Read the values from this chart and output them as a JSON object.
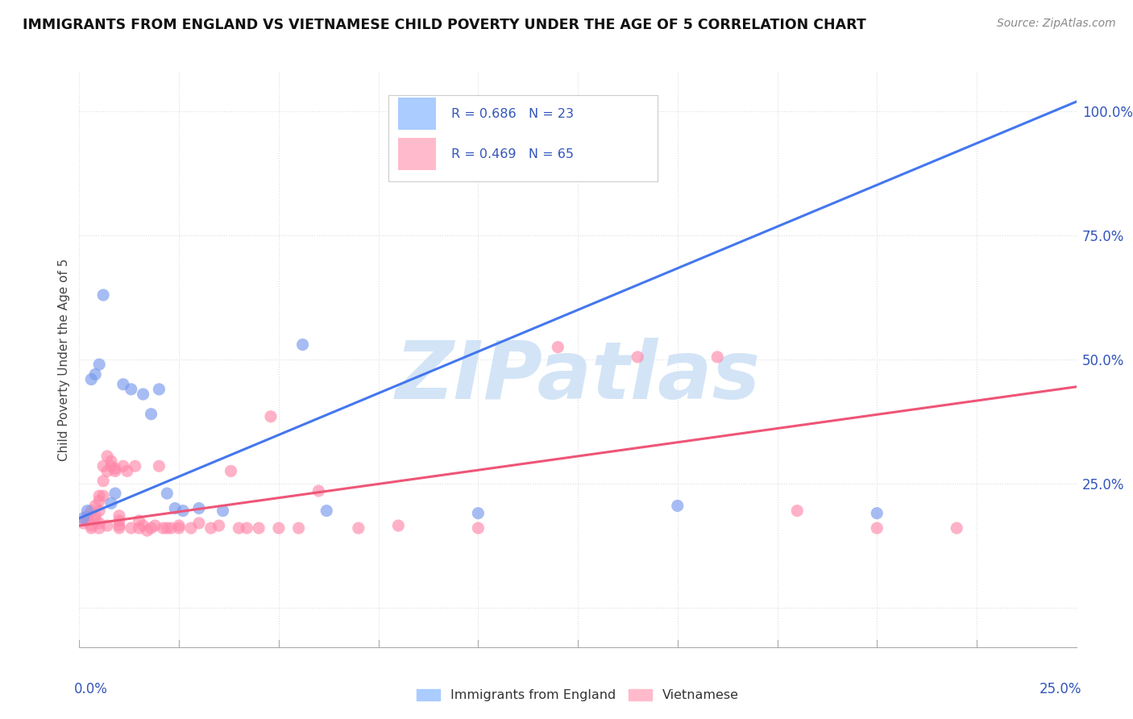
{
  "title": "IMMIGRANTS FROM ENGLAND VS VIETNAMESE CHILD POVERTY UNDER THE AGE OF 5 CORRELATION CHART",
  "source": "Source: ZipAtlas.com",
  "ylabel": "Child Poverty Under the Age of 5",
  "right_yticks": [
    0.0,
    0.25,
    0.5,
    0.75,
    1.0
  ],
  "right_yticklabels": [
    "",
    "25.0%",
    "50.0%",
    "75.0%",
    "100.0%"
  ],
  "xmin": 0.0,
  "xmax": 0.25,
  "ymin": -0.08,
  "ymax": 1.08,
  "blue_scatter": [
    [
      0.001,
      0.18
    ],
    [
      0.002,
      0.195
    ],
    [
      0.003,
      0.46
    ],
    [
      0.004,
      0.47
    ],
    [
      0.005,
      0.49
    ],
    [
      0.006,
      0.63
    ],
    [
      0.008,
      0.21
    ],
    [
      0.009,
      0.23
    ],
    [
      0.011,
      0.45
    ],
    [
      0.013,
      0.44
    ],
    [
      0.016,
      0.43
    ],
    [
      0.018,
      0.39
    ],
    [
      0.02,
      0.44
    ],
    [
      0.022,
      0.23
    ],
    [
      0.024,
      0.2
    ],
    [
      0.026,
      0.195
    ],
    [
      0.03,
      0.2
    ],
    [
      0.036,
      0.195
    ],
    [
      0.056,
      0.53
    ],
    [
      0.062,
      0.195
    ],
    [
      0.1,
      0.19
    ],
    [
      0.15,
      0.205
    ],
    [
      0.2,
      0.19
    ]
  ],
  "pink_scatter": [
    [
      0.001,
      0.17
    ],
    [
      0.002,
      0.175
    ],
    [
      0.002,
      0.185
    ],
    [
      0.003,
      0.165
    ],
    [
      0.003,
      0.16
    ],
    [
      0.003,
      0.195
    ],
    [
      0.004,
      0.175
    ],
    [
      0.004,
      0.185
    ],
    [
      0.004,
      0.205
    ],
    [
      0.005,
      0.17
    ],
    [
      0.005,
      0.16
    ],
    [
      0.005,
      0.225
    ],
    [
      0.005,
      0.215
    ],
    [
      0.005,
      0.195
    ],
    [
      0.006,
      0.285
    ],
    [
      0.006,
      0.255
    ],
    [
      0.006,
      0.225
    ],
    [
      0.007,
      0.305
    ],
    [
      0.007,
      0.275
    ],
    [
      0.007,
      0.165
    ],
    [
      0.008,
      0.295
    ],
    [
      0.008,
      0.285
    ],
    [
      0.009,
      0.28
    ],
    [
      0.009,
      0.275
    ],
    [
      0.01,
      0.16
    ],
    [
      0.01,
      0.175
    ],
    [
      0.01,
      0.185
    ],
    [
      0.01,
      0.165
    ],
    [
      0.011,
      0.285
    ],
    [
      0.012,
      0.275
    ],
    [
      0.013,
      0.16
    ],
    [
      0.014,
      0.285
    ],
    [
      0.015,
      0.16
    ],
    [
      0.015,
      0.175
    ],
    [
      0.016,
      0.165
    ],
    [
      0.017,
      0.155
    ],
    [
      0.018,
      0.16
    ],
    [
      0.019,
      0.165
    ],
    [
      0.02,
      0.285
    ],
    [
      0.021,
      0.16
    ],
    [
      0.022,
      0.16
    ],
    [
      0.023,
      0.16
    ],
    [
      0.025,
      0.165
    ],
    [
      0.025,
      0.16
    ],
    [
      0.028,
      0.16
    ],
    [
      0.03,
      0.17
    ],
    [
      0.033,
      0.16
    ],
    [
      0.035,
      0.165
    ],
    [
      0.038,
      0.275
    ],
    [
      0.04,
      0.16
    ],
    [
      0.042,
      0.16
    ],
    [
      0.045,
      0.16
    ],
    [
      0.048,
      0.385
    ],
    [
      0.05,
      0.16
    ],
    [
      0.055,
      0.16
    ],
    [
      0.06,
      0.235
    ],
    [
      0.07,
      0.16
    ],
    [
      0.08,
      0.165
    ],
    [
      0.1,
      0.16
    ],
    [
      0.12,
      0.525
    ],
    [
      0.14,
      0.505
    ],
    [
      0.16,
      0.505
    ],
    [
      0.18,
      0.195
    ],
    [
      0.2,
      0.16
    ],
    [
      0.22,
      0.16
    ]
  ],
  "blue_line_x": [
    0.0,
    0.25
  ],
  "blue_line_y": [
    0.18,
    1.02
  ],
  "pink_line_x": [
    0.0,
    0.25
  ],
  "pink_line_y": [
    0.165,
    0.445
  ],
  "blue_color": "#88aaff",
  "pink_color": "#ff99bb",
  "blue_scatter_color": "#7799ee",
  "pink_scatter_color": "#ff88aa",
  "blue_line_color": "#4477ee",
  "pink_line_color": "#ee5577",
  "legend_blue_fill": "#aaccff",
  "legend_pink_fill": "#ffbbcc",
  "legend_blue_text": "R = 0.686   N = 23",
  "legend_pink_text": "R = 0.469   N = 65",
  "watermark_text": "ZIPatlas",
  "watermark_color": "#cce0f5",
  "background_color": "#ffffff",
  "grid_color": "#dddddd",
  "text_color": "#3355bb",
  "title_color": "#111111"
}
